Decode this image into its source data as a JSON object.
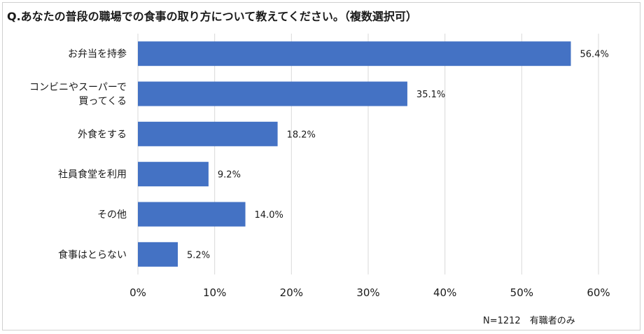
{
  "title": "Q.あなたの普段の職場での食事の取り方について教えてください。（複数選択可）",
  "note": "N=1212　有職者のみ",
  "colors": {
    "bar": "#4472c4",
    "grid": "#d9d9d9"
  },
  "chart_data": {
    "type": "bar",
    "orientation": "horizontal",
    "categories": [
      [
        "お弁当を持参"
      ],
      [
        "コンビニやスーパーで",
        "買ってくる"
      ],
      [
        "外食をする"
      ],
      [
        "社員食堂を利用"
      ],
      [
        "その他"
      ],
      [
        "食事はとらない"
      ]
    ],
    "values": [
      56.4,
      35.1,
      18.2,
      9.2,
      14.0,
      5.2
    ],
    "value_labels": [
      "56.4%",
      "35.1%",
      "18.2%",
      "9.2%",
      "14.0%",
      "5.2%"
    ],
    "xlim": [
      0,
      60
    ],
    "xticks": [
      "0%",
      "10%",
      "20%",
      "30%",
      "40%",
      "50%",
      "60%"
    ],
    "grid": true
  }
}
